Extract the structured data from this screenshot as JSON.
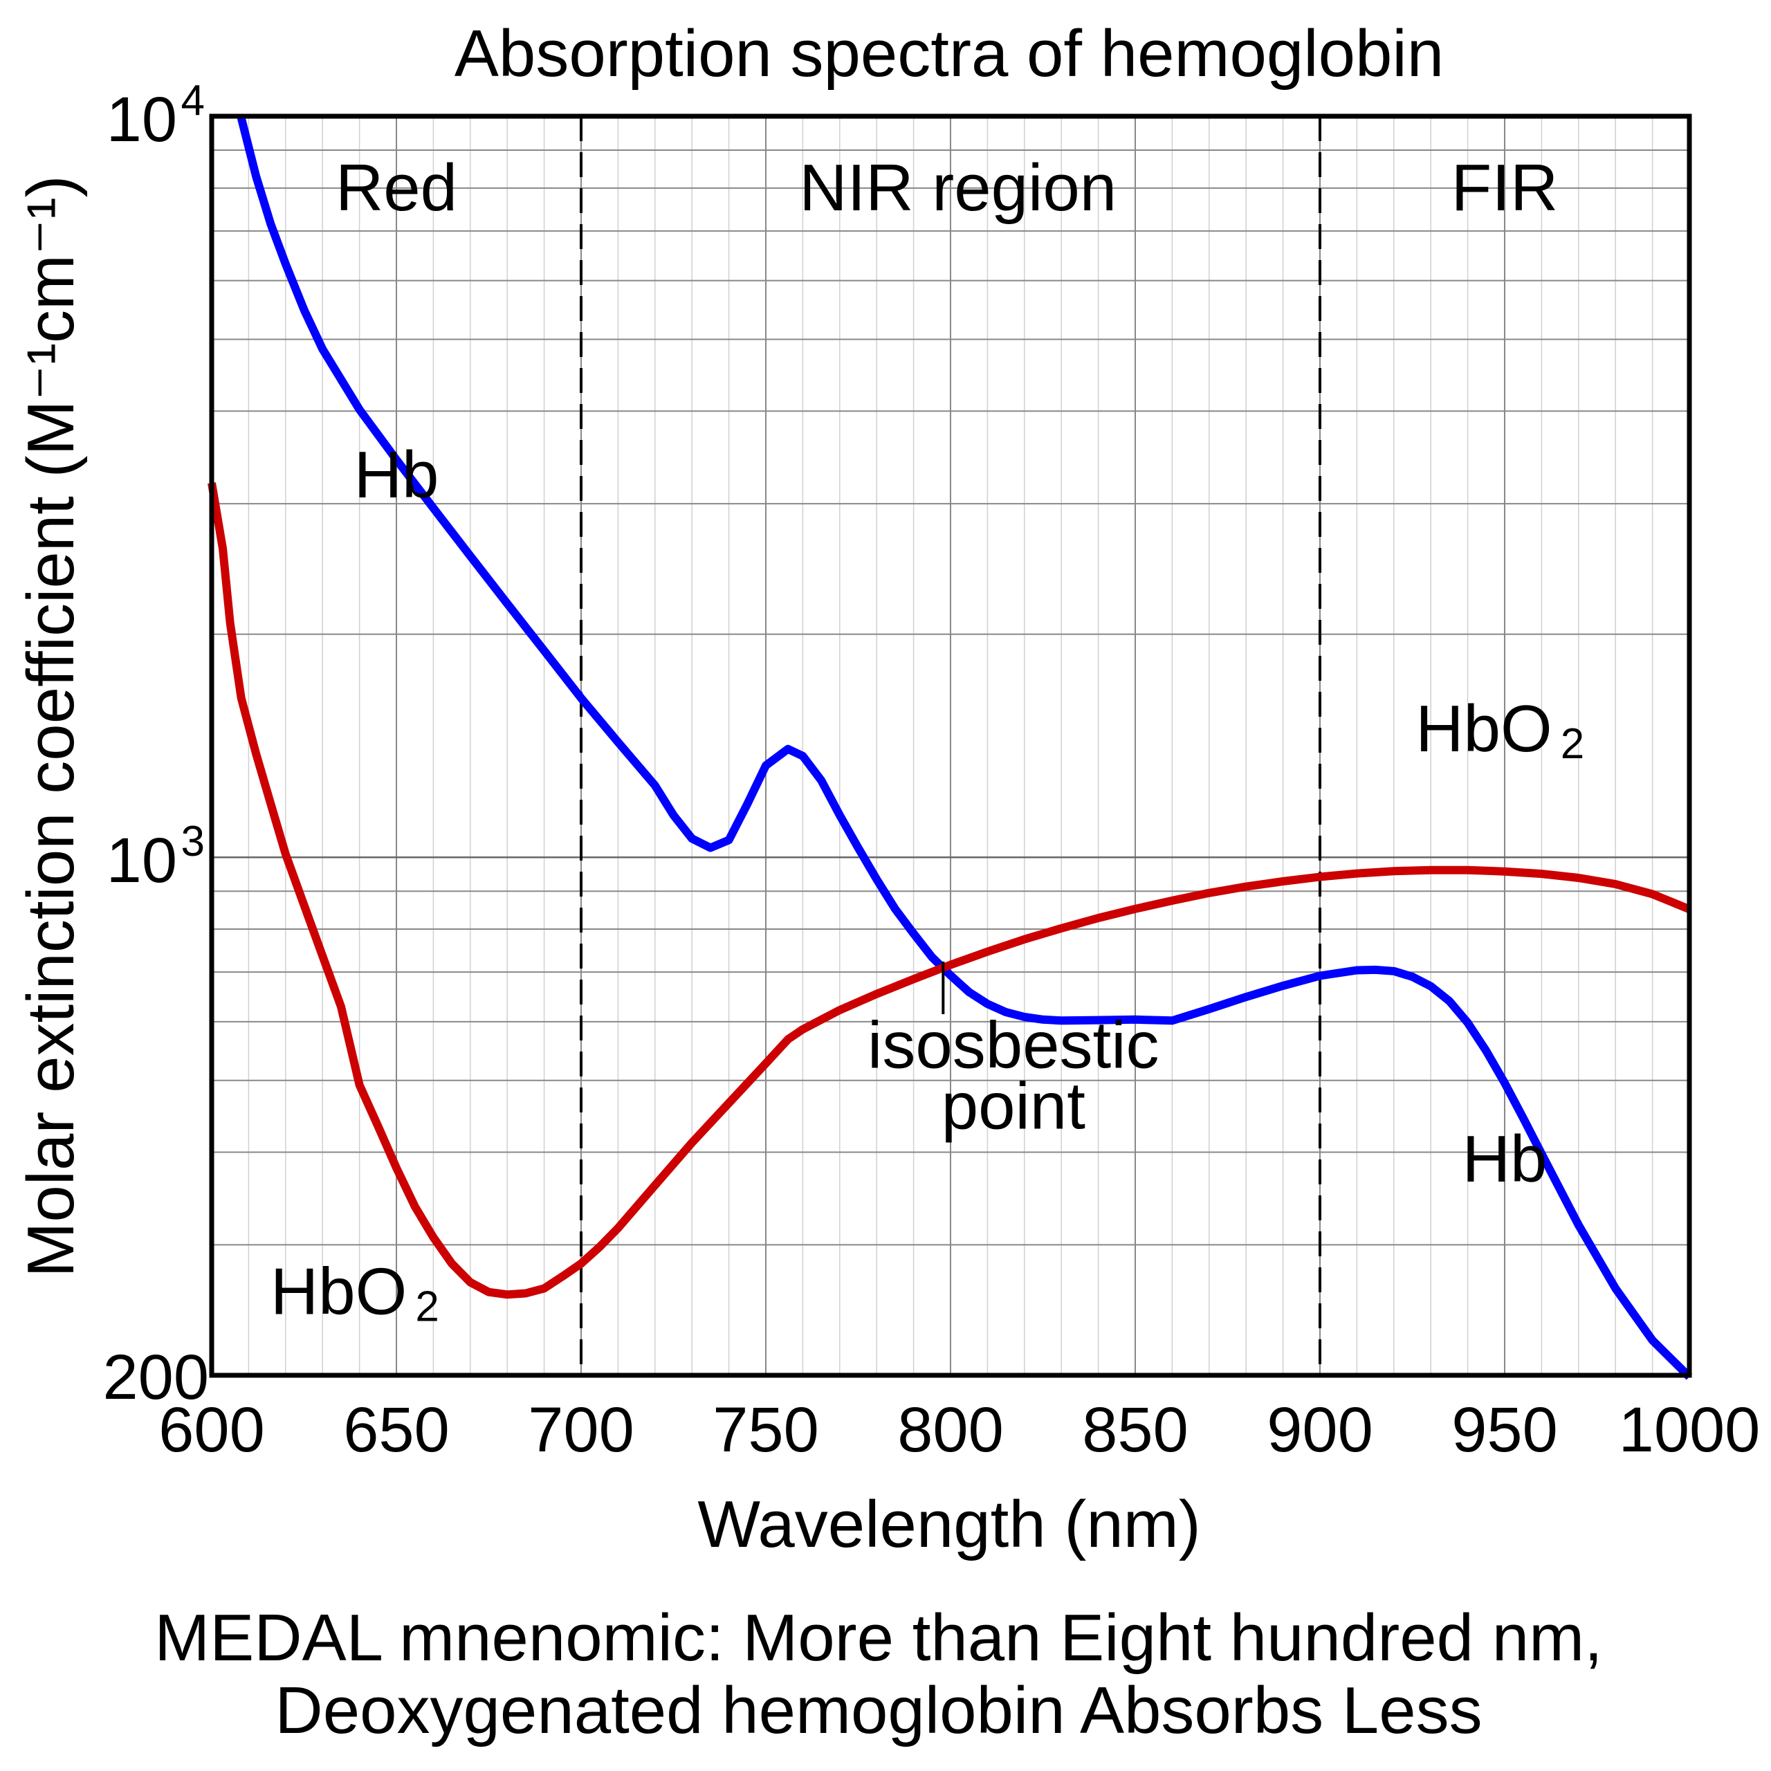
{
  "chart_data": {
    "type": "line",
    "title": "Absorption spectra of hemoglobin",
    "xlabel": "Wavelength (nm)",
    "ylabel": "Molar extinction coefficient (M⁻¹cm⁻¹)",
    "xlim": [
      600,
      1000
    ],
    "ylim": [
      200,
      10000
    ],
    "y_scale": "log",
    "grid": true,
    "x_ticks": [
      600,
      650,
      700,
      750,
      800,
      850,
      900,
      950,
      1000
    ],
    "x_tick_labels": [
      "600",
      "650",
      "700",
      "750",
      "800",
      "850",
      "900",
      "950",
      "1000"
    ],
    "y_ticks": [
      {
        "value": 10000,
        "base": "10",
        "exp": "4"
      },
      {
        "value": 1000,
        "base": "10",
        "exp": "3"
      },
      {
        "value": 200,
        "base": "200",
        "exp": ""
      }
    ],
    "y_minor_grid": [
      300,
      400,
      500,
      600,
      700,
      800,
      900,
      2000,
      3000,
      4000,
      5000,
      6000,
      7000,
      8000,
      9000
    ],
    "region_dividers": [
      700,
      900
    ],
    "regions": [
      {
        "label": "Red",
        "x": 650
      },
      {
        "label": "NIR region",
        "x": 802
      },
      {
        "label": "FIR",
        "x": 950
      }
    ],
    "series": [
      {
        "name": "Hb",
        "color": "#0000ff",
        "x": [
          608,
          612,
          616,
          620,
          625,
          630,
          640,
          650,
          660,
          670,
          680,
          690,
          700,
          710,
          720,
          725,
          730,
          735,
          740,
          745,
          750,
          756,
          760,
          765,
          770,
          775,
          780,
          785,
          790,
          795,
          800,
          805,
          810,
          815,
          820,
          825,
          830,
          840,
          850,
          860,
          870,
          880,
          890,
          900,
          910,
          915,
          920,
          925,
          930,
          935,
          940,
          945,
          950,
          955,
          960,
          970,
          980,
          990,
          1000
        ],
        "y": [
          9950,
          8300,
          7150,
          6320,
          5480,
          4850,
          4020,
          3440,
          2960,
          2550,
          2200,
          1900,
          1640,
          1430,
          1250,
          1140,
          1060,
          1030,
          1055,
          1180,
          1330,
          1400,
          1370,
          1270,
          1140,
          1030,
          934,
          852,
          789,
          733,
          693,
          658,
          634,
          618,
          609,
          604,
          602,
          603,
          604,
          602,
          624,
          648,
          671,
          692,
          704,
          705,
          702,
          690,
          670,
          640,
          598,
          548,
          496,
          445,
          398,
          319,
          262,
          223,
          199
        ]
      },
      {
        "name": "HbO2",
        "color": "#cc0000",
        "x": [
          600,
          603,
          605,
          608,
          612,
          616,
          620,
          625,
          630,
          635,
          640,
          645,
          650,
          655,
          660,
          665,
          670,
          675,
          680,
          685,
          690,
          695,
          700,
          705,
          710,
          720,
          730,
          740,
          750,
          756,
          760,
          770,
          780,
          790,
          800,
          810,
          820,
          830,
          840,
          850,
          860,
          870,
          880,
          890,
          900,
          910,
          920,
          930,
          940,
          950,
          960,
          970,
          980,
          990,
          1000
        ],
        "y": [
          3200,
          2610,
          2070,
          1640,
          1380,
          1180,
          1010,
          862,
          736,
          629,
          493,
          434,
          381,
          338,
          307,
          283,
          267,
          259,
          257,
          258,
          262,
          272,
          283,
          298,
          316,
          361,
          412,
          466,
          527,
          568,
          586,
          622,
          654,
          685,
          716,
          746,
          775,
          802,
          828,
          852,
          874,
          895,
          913,
          928,
          941,
          951,
          958,
          961,
          961,
          957,
          950,
          938,
          920,
          892,
          851
        ]
      }
    ],
    "annotations": [
      {
        "text": "Hb",
        "x": 650,
        "y": 3060,
        "series": "Hb"
      },
      {
        "text": "Hb",
        "x": 950,
        "y": 365,
        "series": "Hb"
      },
      {
        "text": "HbO",
        "sub": "2",
        "x": 950,
        "y": 1390,
        "series": "HbO2"
      },
      {
        "text": "HbO",
        "sub": "2",
        "x": 640,
        "y": 242,
        "series": "HbO2"
      },
      {
        "text": "isosbestic",
        "text2": "point",
        "x": 817,
        "y": 520,
        "marker_x": 798
      }
    ]
  },
  "caption": {
    "line1": "MEDAL mnenomic: More than Eight hundred nm,",
    "line2": "Deoxygenated hemoglobin Absorbs Less"
  }
}
